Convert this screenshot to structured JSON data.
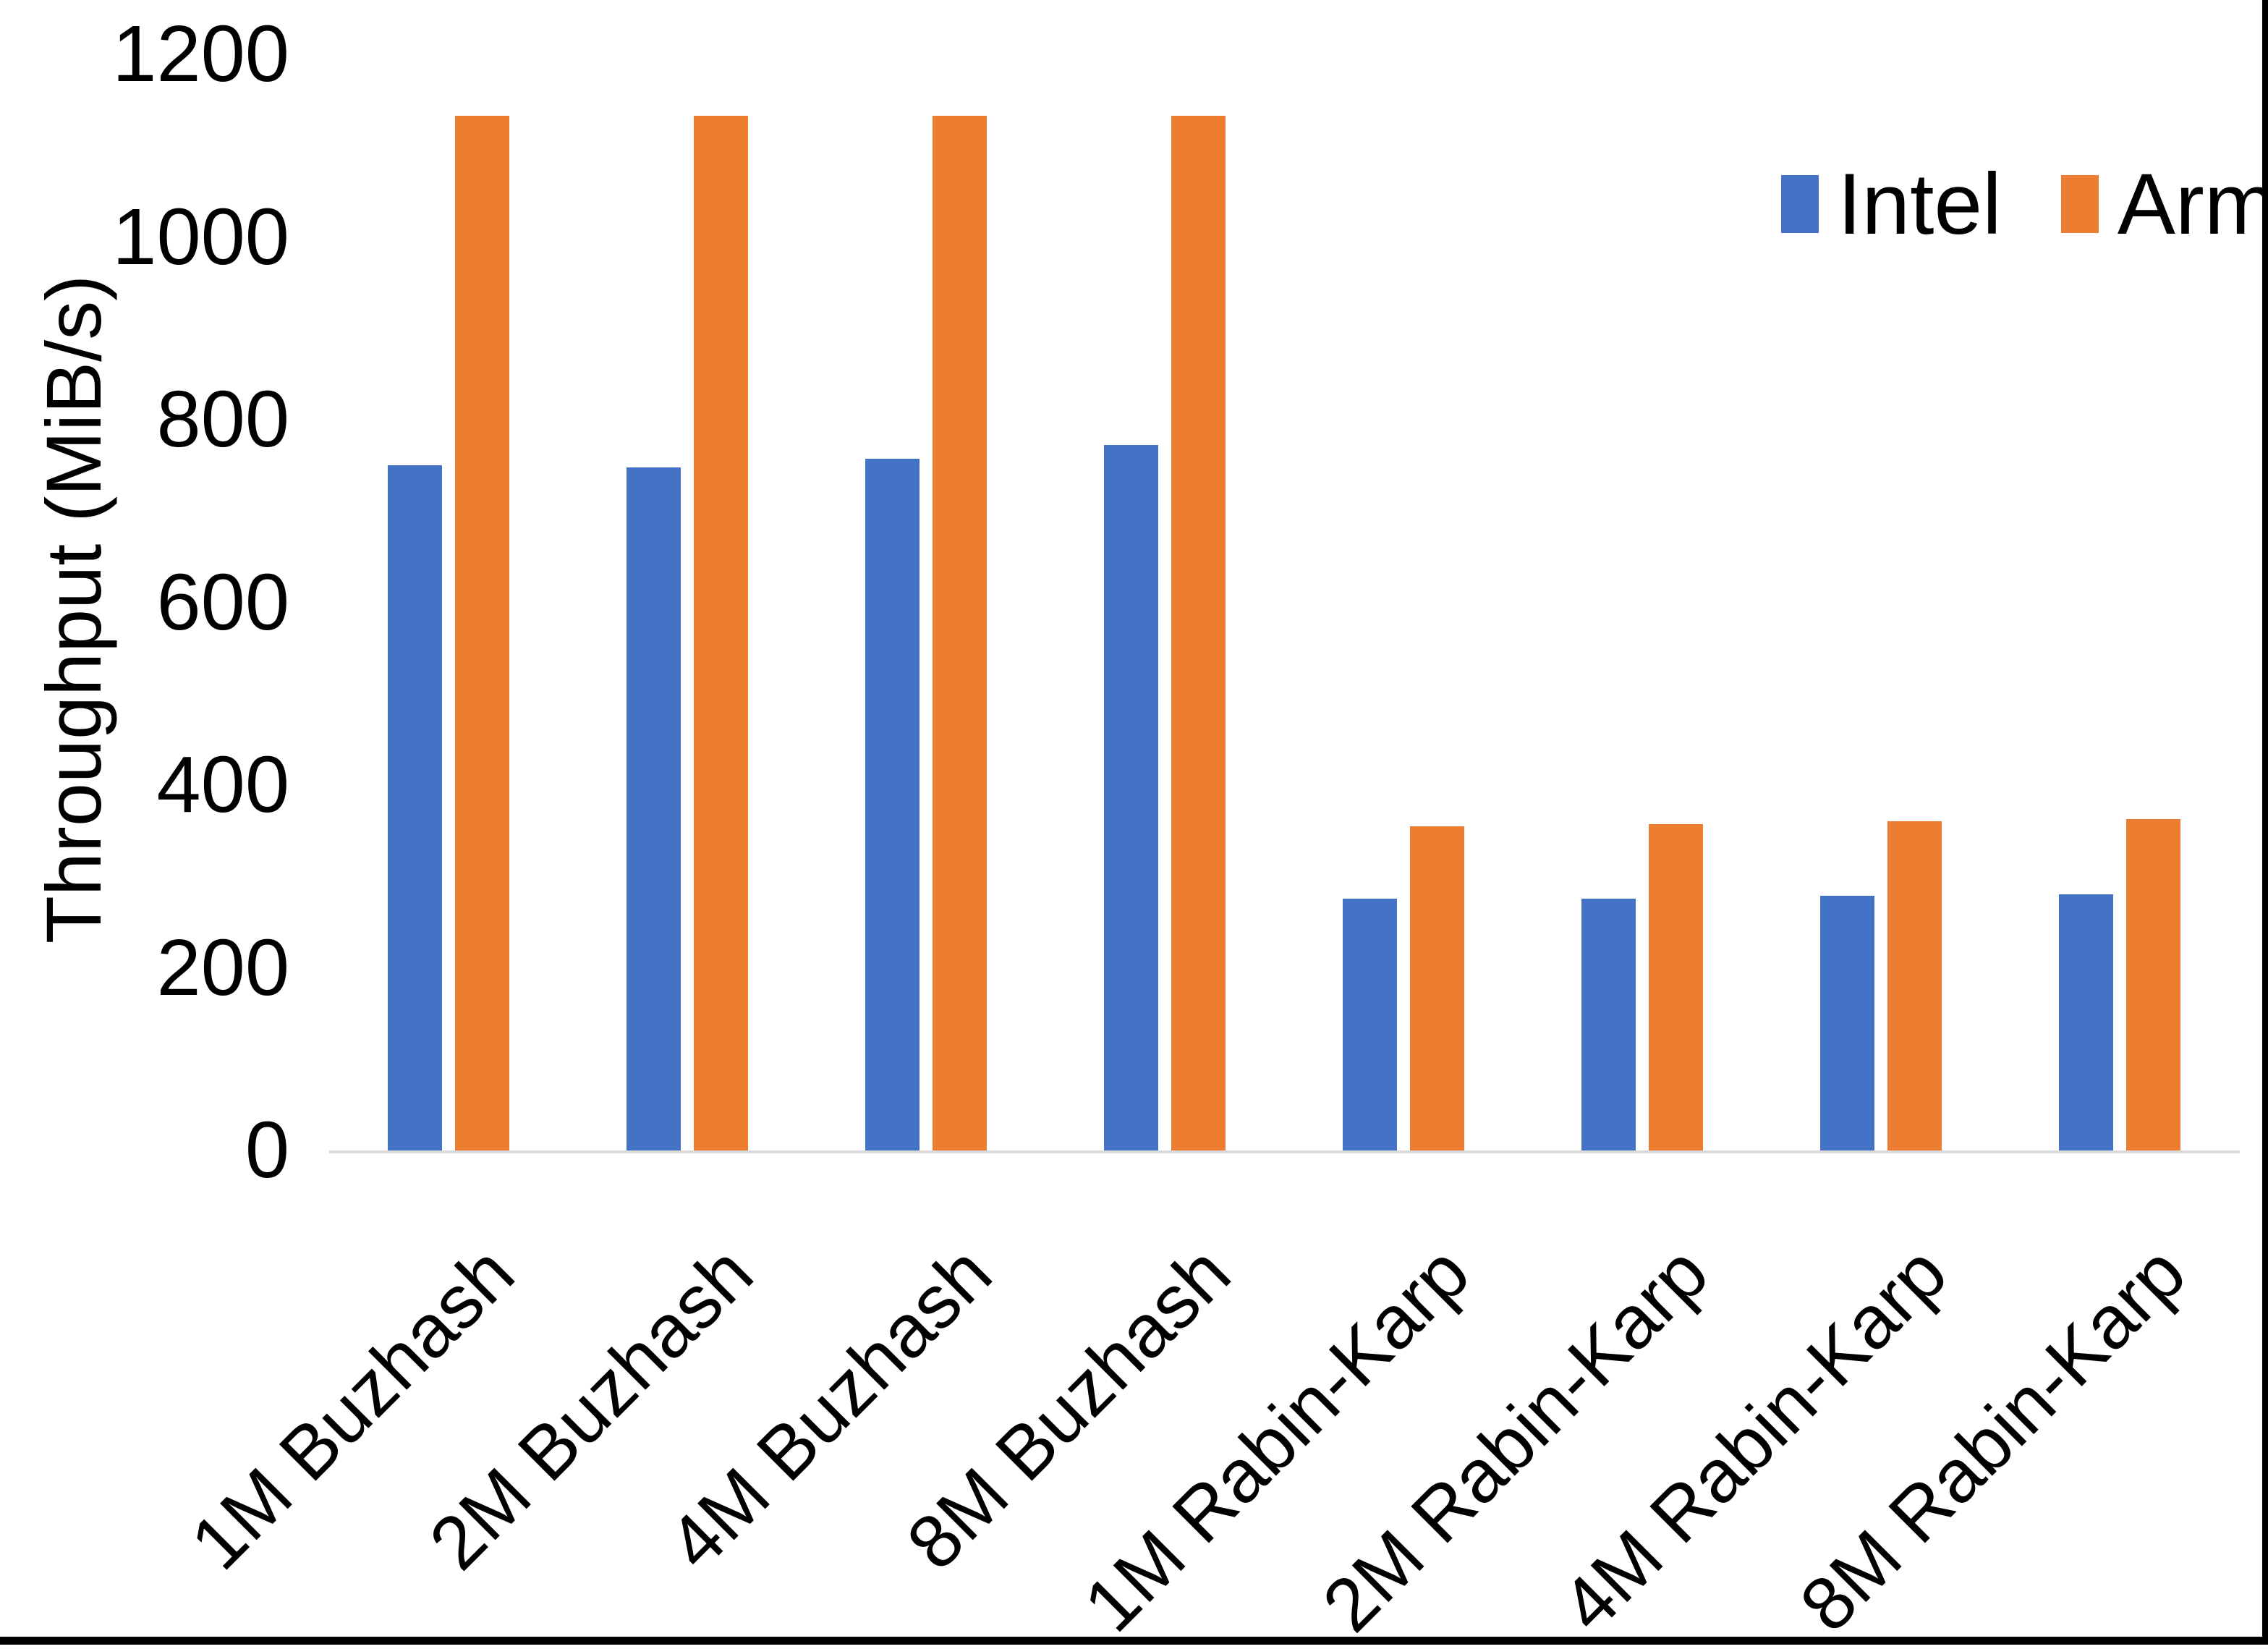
{
  "chart_data": {
    "type": "bar",
    "title": "",
    "xlabel": "",
    "ylabel": "Throughput (MiB/s)",
    "ylim": [
      0,
      1200
    ],
    "yticks": [
      0,
      200,
      400,
      600,
      800,
      1000,
      1200
    ],
    "grid": false,
    "legend_position": "top-right",
    "categories": [
      "1M Buzhash",
      "2M Buzhash",
      "4M Buzhash",
      "8M Buzhash",
      "1M Rabin-Karp",
      "2M Rabin-Karp",
      "4M Rabin-Karp",
      "8M Rabin-Karp"
    ],
    "series": [
      {
        "name": "Intel",
        "color": "#4472C4",
        "values": [
          750,
          748,
          757,
          772,
          276,
          276,
          279,
          280
        ]
      },
      {
        "name": "Arm",
        "color": "#ED7D31",
        "values": [
          1133,
          1133,
          1133,
          1133,
          355,
          357,
          360,
          363
        ]
      }
    ]
  },
  "legend": {
    "items": [
      {
        "label": "Intel",
        "color": "#4472C4"
      },
      {
        "label": "Arm",
        "color": "#ED7D31"
      }
    ]
  },
  "colors": {
    "axis_line": "#D9D9D9",
    "text": "#000000",
    "background": "#FFFFFF",
    "frame": "#000000"
  }
}
